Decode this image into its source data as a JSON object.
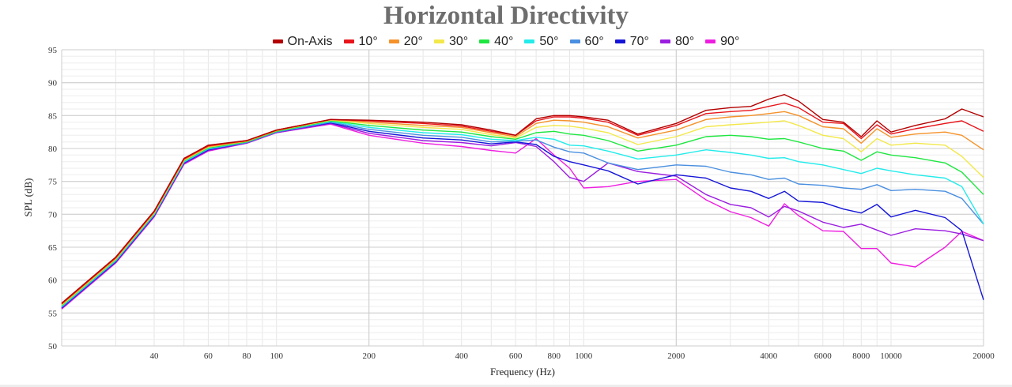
{
  "chart_data": {
    "type": "line",
    "title": "Horizontal Directivity",
    "xlabel": "Frequency (Hz)",
    "ylabel": "SPL (dB)",
    "x_scale": "log",
    "xlim": [
      20,
      20000
    ],
    "ylim": [
      50,
      95
    ],
    "yticks": [
      "50",
      "55",
      "60",
      "65",
      "70",
      "75",
      "80",
      "85",
      "90",
      "95"
    ],
    "xticks": [
      {
        "value": 40,
        "label": "40"
      },
      {
        "value": 60,
        "label": "60"
      },
      {
        "value": 80,
        "label": "80"
      },
      {
        "value": 100,
        "label": "100"
      },
      {
        "value": 200,
        "label": "200"
      },
      {
        "value": 400,
        "label": "400"
      },
      {
        "value": 600,
        "label": "600"
      },
      {
        "value": 800,
        "label": "800"
      },
      {
        "value": 1000,
        "label": "1000"
      },
      {
        "value": 2000,
        "label": "2000"
      },
      {
        "value": 4000,
        "label": "4000"
      },
      {
        "value": 6000,
        "label": "6000"
      },
      {
        "value": 8000,
        "label": "8000"
      },
      {
        "value": 10000,
        "label": "10000"
      },
      {
        "value": 20000,
        "label": "20000"
      }
    ],
    "grid": true,
    "legend_position": "top",
    "x": [
      20,
      30,
      40,
      50,
      60,
      80,
      100,
      150,
      200,
      300,
      400,
      500,
      600,
      700,
      800,
      900,
      1000,
      1200,
      1500,
      2000,
      2500,
      3000,
      3500,
      4000,
      4500,
      5000,
      6000,
      7000,
      8000,
      9000,
      10000,
      12000,
      15000,
      17000,
      20000
    ],
    "series": [
      {
        "name": "On-Axis",
        "color": "#b30000",
        "values": [
          56.5,
          63.5,
          70.5,
          78.5,
          80.5,
          81.2,
          82.8,
          84.4,
          84.3,
          84.0,
          83.6,
          82.8,
          82.0,
          84.5,
          85.0,
          85.0,
          84.8,
          84.3,
          82.2,
          83.8,
          85.8,
          86.2,
          86.4,
          87.5,
          88.2,
          87.2,
          84.4,
          84.0,
          81.8,
          84.2,
          82.5,
          83.5,
          84.5,
          86.0,
          84.8
        ]
      },
      {
        "name": "10°",
        "color": "#e8141a",
        "values": [
          56.4,
          63.4,
          70.4,
          78.4,
          80.4,
          81.2,
          82.8,
          84.4,
          84.2,
          83.8,
          83.4,
          82.6,
          82.0,
          84.2,
          84.8,
          84.8,
          84.6,
          84.0,
          82.0,
          83.5,
          85.3,
          85.6,
          85.8,
          86.4,
          86.9,
          86.2,
          84.0,
          83.8,
          81.5,
          83.6,
          82.2,
          83.0,
          83.8,
          84.2,
          82.6
        ]
      },
      {
        "name": "20°",
        "color": "#f5922a",
        "values": [
          56.3,
          63.3,
          70.3,
          78.3,
          80.3,
          81.1,
          82.7,
          84.4,
          84.0,
          83.5,
          83.2,
          82.4,
          81.8,
          83.8,
          84.3,
          84.2,
          84.0,
          83.3,
          81.6,
          82.8,
          84.4,
          84.8,
          85.0,
          85.3,
          85.6,
          85.0,
          83.3,
          83.0,
          80.8,
          83.0,
          81.7,
          82.2,
          82.5,
          82.0,
          79.8
        ]
      },
      {
        "name": "30°",
        "color": "#f2e84a",
        "values": [
          56.2,
          63.2,
          70.2,
          78.2,
          80.2,
          81.1,
          82.7,
          84.3,
          83.8,
          83.2,
          82.9,
          82.1,
          81.6,
          83.2,
          83.5,
          83.4,
          83.1,
          82.4,
          80.6,
          81.8,
          83.3,
          83.6,
          83.8,
          84.0,
          84.2,
          83.5,
          82.0,
          81.5,
          79.5,
          81.5,
          80.5,
          80.8,
          80.5,
          78.8,
          75.6
        ]
      },
      {
        "name": "40°",
        "color": "#1ee640",
        "values": [
          56.1,
          63.1,
          70.1,
          78.1,
          80.1,
          81.0,
          82.6,
          84.2,
          83.5,
          82.8,
          82.5,
          81.8,
          81.4,
          82.4,
          82.6,
          82.2,
          82.0,
          81.2,
          79.6,
          80.5,
          81.8,
          82.0,
          81.8,
          81.4,
          81.5,
          81.0,
          80.0,
          79.6,
          78.2,
          79.5,
          79.0,
          78.6,
          77.8,
          76.4,
          73.0
        ]
      },
      {
        "name": "50°",
        "color": "#24ebeb",
        "values": [
          56.0,
          63.0,
          70.0,
          78.0,
          80.0,
          81.0,
          82.6,
          84.1,
          83.2,
          82.4,
          82.1,
          81.4,
          81.2,
          81.7,
          81.4,
          80.5,
          80.4,
          79.6,
          78.4,
          79.0,
          79.8,
          79.4,
          79.0,
          78.5,
          78.6,
          78.0,
          77.5,
          76.8,
          76.2,
          77.0,
          76.6,
          76.0,
          75.5,
          74.2,
          68.5
        ]
      },
      {
        "name": "60°",
        "color": "#4a8fe0",
        "values": [
          55.9,
          62.9,
          69.9,
          77.9,
          79.9,
          80.9,
          82.5,
          84.0,
          82.9,
          82.0,
          81.7,
          81.0,
          81.1,
          81.3,
          80.2,
          79.5,
          79.3,
          77.8,
          76.8,
          77.5,
          77.3,
          76.4,
          76.0,
          75.3,
          75.5,
          74.6,
          74.4,
          74.0,
          73.8,
          74.5,
          73.6,
          73.8,
          73.5,
          72.4,
          68.5
        ]
      },
      {
        "name": "70°",
        "color": "#1515d8",
        "values": [
          55.8,
          62.8,
          69.8,
          77.8,
          79.8,
          80.9,
          82.5,
          83.9,
          82.6,
          81.6,
          81.3,
          80.7,
          81.0,
          80.6,
          78.8,
          78.0,
          77.5,
          76.6,
          74.6,
          76.0,
          75.5,
          74.0,
          73.5,
          72.4,
          73.5,
          72.0,
          71.8,
          70.8,
          70.2,
          71.5,
          69.6,
          70.6,
          69.5,
          67.5,
          57.0
        ]
      },
      {
        "name": "80°",
        "color": "#9b1ee0",
        "values": [
          55.7,
          62.7,
          69.7,
          77.7,
          79.7,
          80.8,
          82.4,
          83.8,
          82.3,
          81.2,
          80.9,
          80.4,
          80.9,
          80.3,
          78.0,
          75.6,
          75.0,
          77.8,
          76.5,
          75.8,
          73.0,
          71.5,
          71.0,
          69.6,
          71.2,
          70.5,
          68.8,
          68.0,
          68.5,
          67.6,
          66.8,
          67.8,
          67.5,
          67.0,
          66.0
        ]
      },
      {
        "name": "90°",
        "color": "#ee1ee0",
        "values": [
          55.6,
          62.6,
          69.6,
          77.6,
          79.6,
          80.8,
          82.4,
          83.7,
          82.0,
          80.8,
          80.3,
          79.7,
          79.3,
          81.5,
          79.0,
          77.0,
          74.0,
          74.2,
          75.0,
          75.3,
          72.2,
          70.4,
          69.5,
          68.2,
          71.6,
          69.8,
          67.5,
          67.4,
          64.8,
          64.8,
          62.6,
          62.0,
          65.0,
          67.4,
          66.0
        ]
      }
    ]
  }
}
